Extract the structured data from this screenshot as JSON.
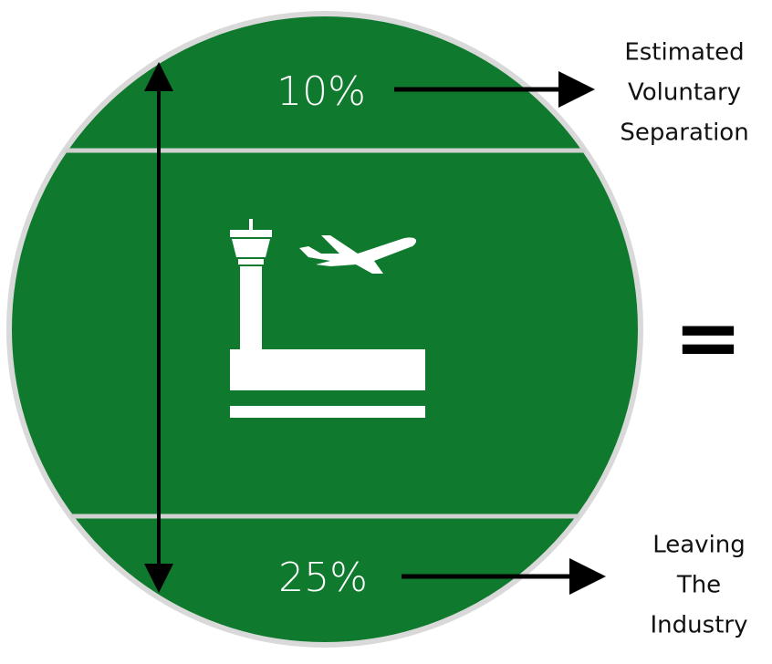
{
  "top": {
    "label": "10%",
    "annotation": [
      "Estimated",
      "Voluntary",
      "Separation"
    ]
  },
  "bottom": {
    "label": "25%",
    "annotation": [
      "Leaving",
      "The",
      "Industry"
    ]
  },
  "equals": "="
}
